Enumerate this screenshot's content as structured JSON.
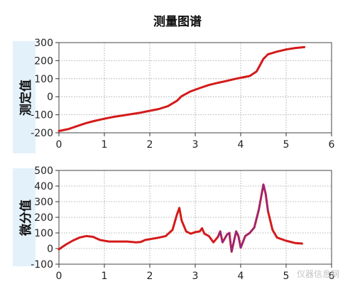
{
  "title": "测量图谱",
  "watermark": "仪器信息网",
  "colors": {
    "series": "#d41a1a",
    "highlight": "#6a2fc4",
    "grid": "#9a9a9a",
    "panel_bg": "#e3f1fb"
  },
  "chart_data": [
    {
      "type": "line",
      "ylabel": "测定值",
      "xlim": [
        0,
        6
      ],
      "ylim": [
        -200,
        300
      ],
      "xticks": [
        0,
        1,
        2,
        3,
        4,
        5,
        6
      ],
      "yticks": [
        -200,
        -100,
        0,
        100,
        200,
        300
      ],
      "grid": true,
      "series": [
        {
          "x": [
            0,
            0.2,
            0.4,
            0.6,
            0.8,
            1.0,
            1.2,
            1.4,
            1.6,
            1.8,
            2.0,
            2.2,
            2.4,
            2.6,
            2.7,
            2.9,
            3.1,
            3.3,
            3.5,
            3.7,
            3.9,
            4.0,
            4.2,
            4.35,
            4.5,
            4.6,
            4.8,
            5.0,
            5.2,
            5.4
          ],
          "y": [
            -190,
            -180,
            -163,
            -146,
            -133,
            -122,
            -112,
            -104,
            -96,
            -88,
            -78,
            -68,
            -52,
            -22,
            3,
            30,
            48,
            65,
            77,
            88,
            100,
            105,
            115,
            140,
            210,
            235,
            250,
            262,
            270,
            275
          ]
        }
      ]
    },
    {
      "type": "line",
      "ylabel": "微分值",
      "xlim": [
        0,
        6
      ],
      "ylim": [
        -100,
        500
      ],
      "xticks": [
        0,
        1,
        2,
        3,
        4,
        5,
        6
      ],
      "yticks": [
        -100,
        0,
        100,
        200,
        300,
        400,
        500
      ],
      "grid": true,
      "series": [
        {
          "x": [
            0,
            0.05,
            0.15,
            0.3,
            0.45,
            0.6,
            0.75,
            0.9,
            1.1,
            1.3,
            1.5,
            1.7,
            1.8,
            1.9,
            2.0,
            2.2,
            2.35,
            2.5,
            2.6,
            2.65,
            2.7,
            2.8,
            2.9,
            3.0,
            3.1,
            3.15,
            3.2,
            3.3,
            3.4,
            3.5,
            3.55,
            3.6,
            3.7,
            3.75,
            3.8,
            3.9,
            3.95,
            4.0,
            4.1,
            4.2,
            4.3,
            4.4,
            4.45,
            4.5,
            4.55,
            4.6,
            4.7,
            4.8,
            5.0,
            5.2,
            5.35
          ],
          "y": [
            -5,
            5,
            25,
            50,
            70,
            80,
            75,
            55,
            45,
            45,
            45,
            40,
            42,
            55,
            60,
            70,
            80,
            120,
            220,
            260,
            180,
            110,
            95,
            105,
            110,
            130,
            95,
            80,
            40,
            75,
            110,
            40,
            90,
            100,
            -20,
            110,
            80,
            5,
            80,
            100,
            135,
            250,
            330,
            410,
            350,
            240,
            120,
            70,
            50,
            35,
            32
          ]
        }
      ]
    }
  ]
}
